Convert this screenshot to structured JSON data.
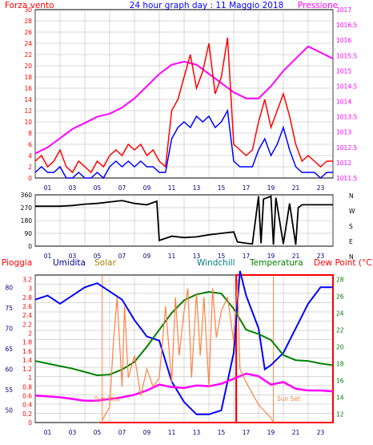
{
  "header": {
    "left": "Forza vento",
    "center": "24 hour graph day : 11 Maggio 2018",
    "right": "Pressione"
  },
  "colors": {
    "gust": "#ff0000",
    "speed": "#0000ff",
    "pressure": "#ff00ff",
    "direction": "#000000",
    "grid": "#a0a0a0",
    "rain": "#ff0000",
    "humidity": "#0000ff",
    "solar": "#ff8040",
    "windchill": "#008080",
    "temperature": "#008000",
    "dewpoint": "#ff00ff",
    "sun_marker": "#ff8040"
  },
  "bottom_legend": {
    "rain": "Pioggia",
    "humidity": "Umidita",
    "solar": "Solar",
    "windchill": "Windchill",
    "temperature": "Temperatura",
    "dewpoint": "Dew Point (°C)"
  },
  "annotations": {
    "sunrise": "Sun Rise",
    "sunset": "Sun Set"
  },
  "chart_data": [
    {
      "type": "line",
      "x_ticks": [
        "01",
        "03",
        "05",
        "07",
        "09",
        "11",
        "13",
        "15",
        "17",
        "19",
        "21",
        "23"
      ],
      "y_left_ticks": [
        "0",
        "2",
        "4",
        "6",
        "8",
        "10",
        "12",
        "14",
        "16",
        "18",
        "20",
        "22",
        "24",
        "26",
        "28",
        "30"
      ],
      "y_right_ticks": [
        "1011.5",
        "1012",
        "1012.5",
        "1013",
        "1013.5",
        "1014",
        "1014.5",
        "1015",
        "1015.5",
        "1016",
        "1016.5",
        "1017"
      ],
      "ylim_left": [
        0,
        30
      ],
      "ylim_right": [
        1011.5,
        1017
      ],
      "grid": true,
      "series": [
        {
          "name": "Pressione",
          "axis": "right",
          "x": [
            0,
            1,
            2,
            3,
            4,
            5,
            6,
            7,
            8,
            9,
            10,
            11,
            12,
            13,
            14,
            15,
            16,
            17,
            18,
            19,
            20,
            21,
            22,
            23,
            24
          ],
          "values": [
            1012.3,
            1012.5,
            1012.8,
            1013.1,
            1013.3,
            1013.5,
            1013.6,
            1013.8,
            1014.1,
            1014.5,
            1014.9,
            1015.2,
            1015.3,
            1015.2,
            1014.9,
            1014.6,
            1014.3,
            1014.1,
            1014.1,
            1014.5,
            1015.0,
            1015.4,
            1015.8,
            1015.6,
            1015.4
          ]
        },
        {
          "name": "gust",
          "x": [
            0,
            0.5,
            1,
            1.5,
            2,
            2.5,
            3,
            3.5,
            4,
            4.5,
            5,
            5.5,
            6,
            6.5,
            7,
            7.5,
            8,
            8.5,
            9,
            9.5,
            10,
            10.5,
            11,
            11.5,
            12,
            12.5,
            13,
            13.5,
            14,
            14.5,
            15,
            15.5,
            16,
            16.5,
            17,
            17.5,
            18,
            18.5,
            19,
            19.5,
            20,
            20.5,
            21,
            21.5,
            22,
            22.5,
            23,
            23.5,
            24
          ],
          "values": [
            3,
            4,
            2,
            3,
            5,
            2,
            1,
            3,
            2,
            1,
            3,
            2,
            4,
            5,
            4,
            6,
            5,
            6,
            4,
            5,
            3,
            2,
            12,
            14,
            18,
            22,
            16,
            19,
            24,
            15,
            18,
            25,
            6,
            5,
            4,
            5,
            10,
            14,
            9,
            12,
            15,
            11,
            6,
            3,
            4,
            3,
            2,
            3,
            3
          ]
        },
        {
          "name": "speed",
          "x": [
            0,
            0.5,
            1,
            1.5,
            2,
            2.5,
            3,
            3.5,
            4,
            4.5,
            5,
            5.5,
            6,
            6.5,
            7,
            7.5,
            8,
            8.5,
            9,
            9.5,
            10,
            10.5,
            11,
            11.5,
            12,
            12.5,
            13,
            13.5,
            14,
            14.5,
            15,
            15.5,
            16,
            16.5,
            17,
            17.5,
            18,
            18.5,
            19,
            19.5,
            20,
            20.5,
            21,
            21.5,
            22,
            22.5,
            23,
            23.5,
            24
          ],
          "values": [
            1,
            2,
            1,
            1,
            2,
            0,
            0,
            1,
            0,
            0,
            1,
            0,
            2,
            3,
            2,
            3,
            2,
            3,
            2,
            2,
            1,
            1,
            7,
            9,
            10,
            9,
            11,
            10,
            11,
            9,
            10,
            12,
            3,
            2,
            2,
            2,
            5,
            7,
            4,
            6,
            9,
            5,
            2,
            1,
            1,
            1,
            0,
            1,
            1
          ]
        }
      ]
    },
    {
      "type": "line",
      "title": "",
      "x_ticks": [
        "01",
        "03",
        "05",
        "07",
        "09",
        "11",
        "13",
        "15",
        "17",
        "19",
        "21",
        "23"
      ],
      "y_ticks": [
        "0",
        "90",
        "180",
        "270",
        "360"
      ],
      "y_right_labels": [
        "N",
        "W",
        "S",
        "E",
        "N"
      ],
      "ylim": [
        0,
        360
      ],
      "grid": true,
      "series": [
        {
          "name": "direction",
          "x": [
            0,
            2,
            3,
            4,
            5,
            6,
            7,
            8,
            9,
            9.8,
            10,
            11,
            12,
            13,
            14,
            15,
            16,
            16.3,
            17,
            17.5,
            18,
            18.2,
            18.4,
            19,
            19.2,
            19.4,
            20,
            20.5,
            21,
            21.2,
            21.5,
            22,
            24
          ],
          "values": [
            280,
            280,
            285,
            295,
            300,
            310,
            320,
            300,
            290,
            315,
            40,
            70,
            60,
            65,
            80,
            90,
            100,
            30,
            20,
            15,
            350,
            20,
            330,
            350,
            10,
            340,
            15,
            300,
            10,
            270,
            290,
            290,
            290
          ]
        }
      ]
    },
    {
      "type": "line",
      "x_ticks": [
        "01",
        "03",
        "05",
        "07",
        "09",
        "11",
        "13",
        "15",
        "17",
        "19",
        "21",
        "23"
      ],
      "y_left_ticks": [
        "0",
        "0.2",
        "0.4",
        "0.6",
        "0.8",
        "1",
        "1.2",
        "1.4",
        "1.6",
        "1.8",
        "2",
        "2.2",
        "2.4",
        "2.6",
        "2.8",
        "3",
        "3.2"
      ],
      "y_humidity_ticks": [
        "50",
        "55",
        "60",
        "65",
        "70",
        "75",
        "80"
      ],
      "y_right_ticks": [
        "12",
        "14",
        "16",
        "18",
        "20",
        "22",
        "24",
        "26",
        "28"
      ],
      "ylim_left": [
        0,
        3.3
      ],
      "ylim_right": [
        11,
        28.5
      ],
      "grid": true,
      "series": [
        {
          "name": "Umidita",
          "axis": "humidity",
          "x": [
            0,
            1,
            2,
            3,
            4,
            5,
            6,
            7,
            8,
            9,
            10,
            11,
            12,
            13,
            14,
            15,
            16,
            16.5,
            17,
            18,
            18.5,
            19,
            20,
            21,
            22,
            23,
            24
          ],
          "values": [
            77,
            78,
            76,
            78,
            80,
            81,
            79,
            77,
            72,
            68,
            67,
            57,
            52,
            49,
            49,
            50,
            64,
            84,
            78,
            70,
            60,
            61,
            64,
            70,
            76,
            80,
            80
          ]
        },
        {
          "name": "Temperatura",
          "axis": "right",
          "x": [
            0,
            1,
            2,
            3,
            4,
            5,
            6,
            7,
            8,
            9,
            10,
            11,
            12,
            13,
            14,
            15,
            16,
            17,
            18,
            19,
            20,
            21,
            22,
            23,
            24
          ],
          "values": [
            18.3,
            18.0,
            17.7,
            17.4,
            17.0,
            16.6,
            16.7,
            17.3,
            18.2,
            20.0,
            22.0,
            24.0,
            25.5,
            26.2,
            26.5,
            26.3,
            24.5,
            22.0,
            21.5,
            20.8,
            19.0,
            18.4,
            18.3,
            18.0,
            17.8
          ]
        },
        {
          "name": "Dew Point",
          "axis": "right",
          "x": [
            0,
            1,
            2,
            3,
            4,
            5,
            6,
            7,
            8,
            9,
            10,
            11,
            12,
            13,
            14,
            15,
            16,
            17,
            18,
            19,
            20,
            21,
            22,
            23,
            24
          ],
          "values": [
            14.2,
            14.1,
            14.0,
            13.8,
            13.6,
            13.6,
            13.8,
            14.0,
            14.3,
            14.8,
            15.5,
            15.2,
            15.1,
            15.4,
            15.3,
            15.6,
            16.2,
            16.8,
            16.5,
            15.5,
            15.8,
            15.0,
            14.8,
            14.8,
            14.7
          ]
        },
        {
          "name": "Solar",
          "axis": "left",
          "x": [
            5.4,
            6,
            6.3,
            6.6,
            7,
            7.2,
            7.5,
            8,
            8.5,
            9,
            9.5,
            10,
            10.5,
            11,
            11.3,
            11.6,
            12,
            12.3,
            12.6,
            13,
            13.3,
            13.6,
            14,
            14.3,
            14.6,
            15,
            15.5,
            16,
            16.3,
            16.5,
            17,
            18,
            19,
            19.2
          ],
          "values": [
            0.05,
            0.35,
            1.8,
            2.8,
            0.8,
            2.6,
            1.0,
            1.5,
            0.6,
            1.2,
            0.8,
            1.0,
            2.6,
            0.9,
            2.8,
            1.5,
            2.5,
            3.0,
            1.0,
            2.9,
            1.5,
            2.8,
            0.8,
            3.0,
            1.9,
            2.5,
            2.8,
            1.8,
            3.2,
            1.2,
            0.9,
            0.4,
            0.1,
            0.0
          ]
        },
        {
          "name": "Pioggia",
          "axis": "left",
          "x": [
            0,
            5.2,
            5.2,
            16.2,
            16.2,
            24
          ],
          "values": [
            0,
            0,
            0,
            0,
            0,
            0
          ]
        }
      ]
    }
  ]
}
